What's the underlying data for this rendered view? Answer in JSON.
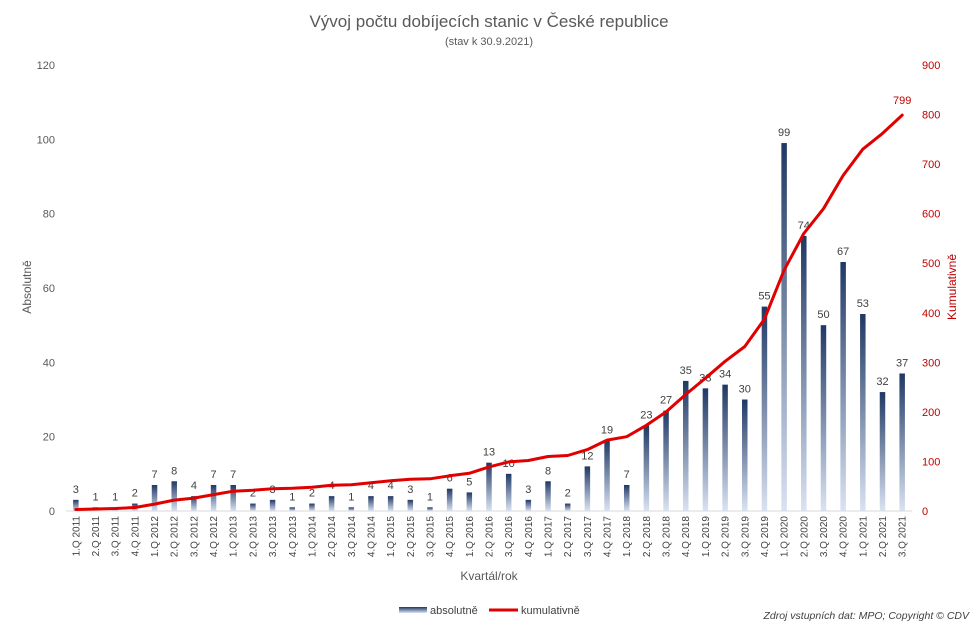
{
  "chart_data": {
    "type": "bar",
    "title": "Vývoj počtu dobíjecích stanic v České republice",
    "subtitle": "(stav k 30.9.2021)",
    "xlabel": "Kvartál/rok",
    "ylabel": "Absolutně",
    "y2label": "Kumulativně",
    "ylim": [
      0,
      120
    ],
    "y2lim": [
      0,
      900
    ],
    "yticks": [
      0,
      20,
      40,
      60,
      80,
      100,
      120
    ],
    "y2ticks": [
      0,
      100,
      200,
      300,
      400,
      500,
      600,
      700,
      800,
      900
    ],
    "categories": [
      "1.Q 2011",
      "2.Q 2011",
      "3.Q 2011",
      "4.Q 2011",
      "1.Q 2012",
      "2.Q 2012",
      "3.Q 2012",
      "4.Q 2012",
      "1.Q 2013",
      "2.Q 2013",
      "3.Q 2013",
      "4.Q 2013",
      "1.Q 2014",
      "2.Q 2014",
      "3.Q 2014",
      "4.Q 2014",
      "1.Q 2015",
      "2.Q 2015",
      "3.Q 2015",
      "4.Q 2015",
      "1.Q 2016",
      "2.Q 2016",
      "3.Q 2016",
      "4.Q 2016",
      "1.Q 2017",
      "2.Q 2017",
      "3.Q 2017",
      "4.Q 2017",
      "1.Q 2018",
      "2.Q 2018",
      "3.Q 2018",
      "4.Q 2018",
      "1.Q 2019",
      "2.Q 2019",
      "3.Q 2019",
      "4.Q 2019",
      "1.Q 2020",
      "2.Q 2020",
      "3.Q 2020",
      "4.Q 2020",
      "1.Q 2021",
      "2.Q 2021",
      "3.Q 2021"
    ],
    "series": [
      {
        "name": "absolutně",
        "type": "bar",
        "axis": "left",
        "values": [
          3,
          1,
          1,
          2,
          7,
          8,
          4,
          7,
          7,
          2,
          3,
          1,
          2,
          4,
          1,
          4,
          4,
          3,
          1,
          6,
          5,
          13,
          10,
          3,
          8,
          2,
          12,
          19,
          7,
          23,
          27,
          35,
          33,
          34,
          30,
          55,
          99,
          74,
          50,
          67,
          53,
          32,
          37
        ]
      },
      {
        "name": "kumulativně",
        "type": "line",
        "axis": "right",
        "values": [
          3,
          4,
          5,
          7,
          14,
          22,
          26,
          33,
          40,
          42,
          45,
          46,
          48,
          52,
          53,
          57,
          61,
          64,
          65,
          71,
          76,
          89,
          99,
          102,
          110,
          112,
          124,
          143,
          150,
          173,
          200,
          235,
          268,
          302,
          332,
          387,
          486,
          560,
          610,
          677,
          730,
          762,
          799
        ]
      }
    ],
    "last_cumulative_label": "799",
    "legend": {
      "position": "bottom",
      "items": [
        "absolutně",
        "kumulativně"
      ]
    },
    "grid": false,
    "colors": {
      "bar_top": "#1f3864",
      "bar_bottom": "#dae3f3",
      "line": "#c00000",
      "label": "#404040"
    },
    "source": "Zdroj vstupních dat: MPO; Copyright © CDV"
  }
}
